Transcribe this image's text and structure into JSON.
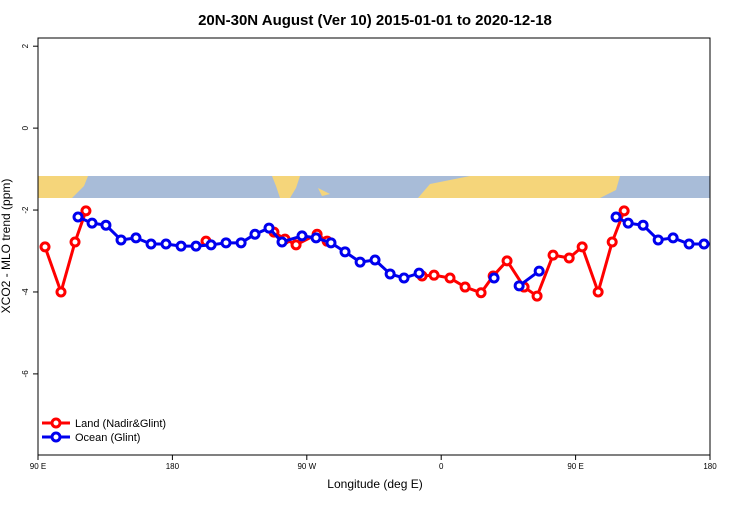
{
  "chart_data": {
    "type": "line",
    "title": "20N-30N August (Ver 10)   2015-01-01 to 2020-12-18",
    "x_label": "Longitude (deg E)",
    "y_label": "XCO2 - MLO trend (ppm)",
    "xlim": [
      90,
      540
    ],
    "ylim": [
      -7.98,
      2.2
    ],
    "xticks": [
      {
        "value": 90,
        "label": "90 E"
      },
      180,
      {
        "value": 270,
        "label": "90 W"
      },
      {
        "value": 360,
        "label": "0"
      },
      {
        "value": 450,
        "label": "90 E"
      },
      {
        "value": 540,
        "label": "180"
      }
    ],
    "yticks": [
      -6,
      -4,
      -2,
      0,
      2
    ],
    "legend": "bottom-left",
    "series": [
      {
        "name": "Land (Nadir&Glint)",
        "color": "#ff0000",
        "x": [
          94.7,
          105.4,
          114.8,
          122.1,
          160,
          202.5,
          225,
          248,
          255.4,
          262.8,
          276.9,
          283.6,
          315,
          347.2,
          355.2,
          365.9,
          376,
          386.7,
          394.8,
          404.1,
          415.5,
          424.2,
          434.9,
          445.7,
          454.4,
          465.1,
          474.5,
          482.5
        ],
        "values": [
          -2.9,
          -4.0,
          -2.78,
          -2.02,
          null,
          -2.76,
          null,
          -2.54,
          -2.71,
          -2.85,
          -2.59,
          -2.76,
          null,
          -3.61,
          -3.59,
          -3.66,
          -3.88,
          -4.02,
          -3.61,
          -3.24,
          -3.88,
          -4.1,
          -3.1,
          -3.17,
          -2.9,
          -4.0,
          -2.78,
          -2.02
        ]
      },
      {
        "name": "Ocean (Glint)",
        "color": "#0000ee",
        "x": [
          116.8,
          126.2,
          135.5,
          145.6,
          155.6,
          165.7,
          175.7,
          185.8,
          195.8,
          205.9,
          215.9,
          226,
          235.3,
          244.7,
          253.4,
          266.8,
          276.2,
          286.2,
          295.6,
          305.7,
          315.7,
          325.8,
          335.1,
          345.2,
          370,
          395.4,
          404,
          412.2,
          425.6,
          450,
          477.1,
          485.2,
          495.2,
          505.3,
          515.3,
          526,
          536
        ],
        "values": [
          -2.17,
          -2.32,
          -2.37,
          -2.73,
          -2.68,
          -2.83,
          -2.83,
          -2.88,
          -2.88,
          -2.85,
          -2.8,
          -2.8,
          -2.59,
          -2.44,
          -2.78,
          -2.63,
          -2.68,
          -2.8,
          -3.02,
          -3.27,
          -3.22,
          -3.56,
          -3.66,
          -3.54,
          null,
          -3.66,
          null,
          -3.85,
          -3.49,
          null,
          -2.17,
          -2.32,
          -2.37,
          -2.73,
          -2.68,
          -2.83,
          -2.83
        ]
      }
    ]
  }
}
